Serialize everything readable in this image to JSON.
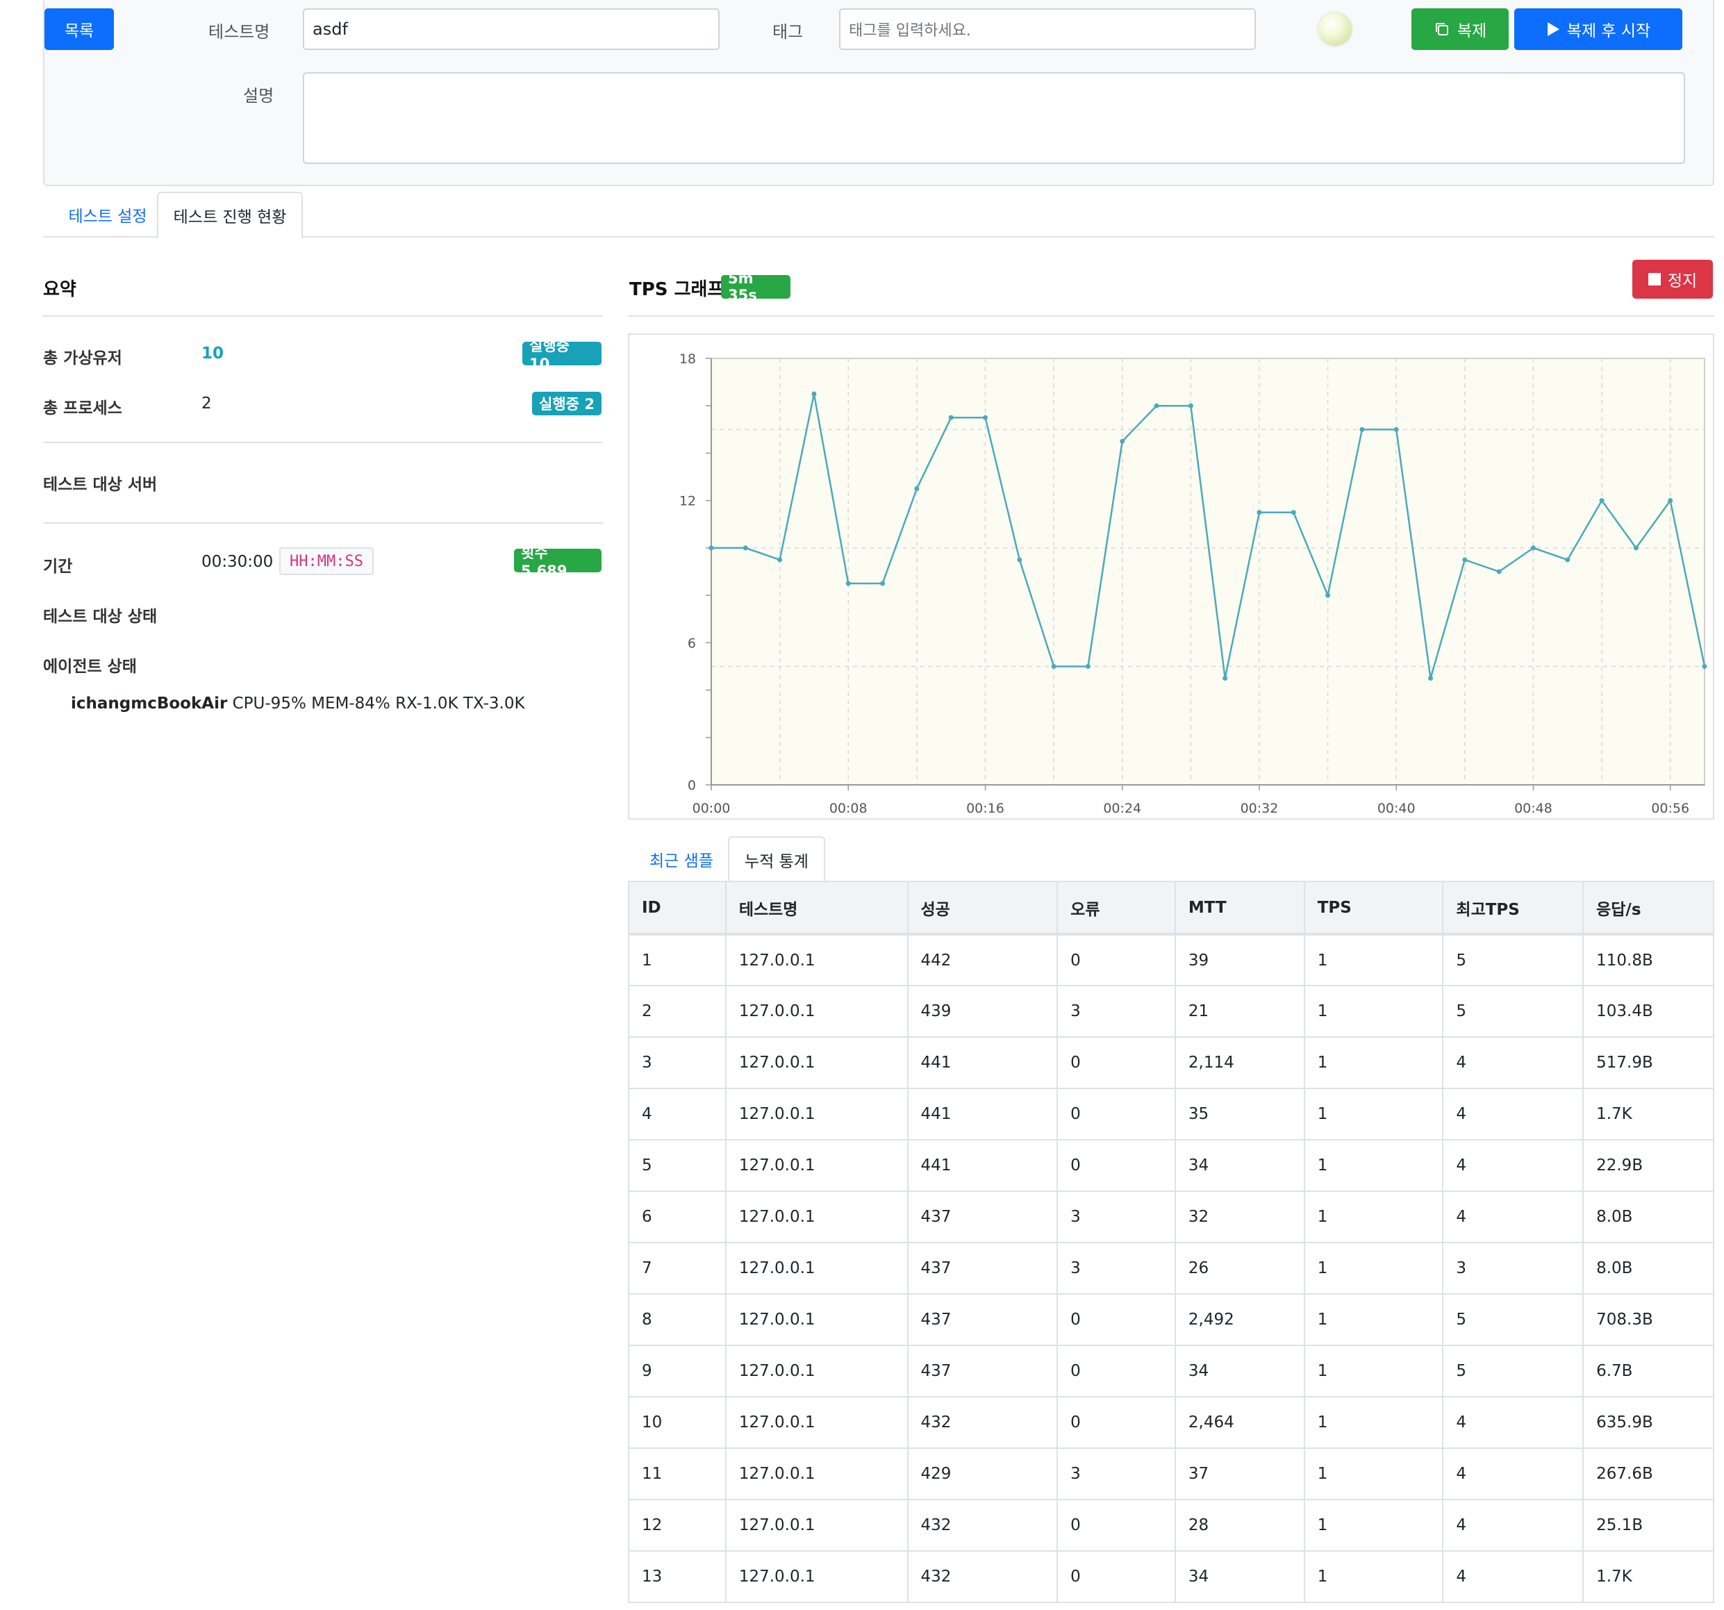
{
  "top": {
    "list_button": "목록",
    "name_label": "테스트명",
    "name_value": "asdf",
    "tag_label": "태그",
    "tag_placeholder": "태그를 입력하세요.",
    "desc_label": "설명",
    "desc_value": "",
    "copy_button": "복제",
    "copy_start_button": "복제 후 시작"
  },
  "tabs": [
    "테스트 설정",
    "테스트 진행 현황"
  ],
  "summary": {
    "title": "요약",
    "total_users_label": "총 가상유저",
    "total_users_value": "10",
    "total_users_badge": "실행중 10",
    "total_procs_label": "총 프로세스",
    "total_procs_value": "2",
    "total_procs_badge": "실행중 2",
    "target_server_label": "테스트 대상 서버",
    "period_label": "기간",
    "period_value": "00:30:00",
    "period_format": "HH:MM:SS",
    "count_badge": "횟수 5,689",
    "target_status_label": "테스트 대상 상태",
    "agent_status_label": "에이전트 상태",
    "agent_name": "ichangmcBookAir",
    "agent_stats": " CPU-95% MEM-84% RX-1.0K TX-3.0K"
  },
  "tps": {
    "title": "TPS 그래프",
    "elapsed_badge": "5m 35s",
    "stop_button": "정지"
  },
  "chart_data": {
    "type": "line",
    "x": [
      "00:00",
      "00:02",
      "00:04",
      "00:06",
      "00:08",
      "00:10",
      "00:12",
      "00:14",
      "00:16",
      "00:18",
      "00:20",
      "00:22",
      "00:24",
      "00:26",
      "00:28",
      "00:30",
      "00:32",
      "00:34",
      "00:36",
      "00:38",
      "00:40",
      "00:42",
      "00:44",
      "00:46",
      "00:48",
      "00:50",
      "00:52",
      "00:54",
      "00:56",
      "00:58"
    ],
    "x_ticks": [
      "00:00",
      "00:08",
      "00:16",
      "00:24",
      "00:32",
      "00:40",
      "00:48",
      "00:56"
    ],
    "values": [
      10,
      10,
      9.5,
      16.5,
      8.5,
      8.5,
      12.5,
      15.5,
      15.5,
      9.5,
      5,
      5,
      14.5,
      16,
      16,
      4.5,
      11.5,
      11.5,
      8,
      15,
      15,
      4.5,
      9.5,
      9,
      10,
      9.5,
      12,
      10,
      12,
      5
    ],
    "ylim": [
      0,
      18
    ],
    "y_ticks": [
      0,
      6,
      12,
      18
    ],
    "grid": true,
    "line_color": "#4aaabb",
    "plot_bg": "#fdfcf2"
  },
  "subtabs": [
    "최근 샘플",
    "누적 통계"
  ],
  "table": {
    "headers": [
      "ID",
      "테스트명",
      "성공",
      "오류",
      "MTT",
      "TPS",
      "최고TPS",
      "응답/s"
    ],
    "rows": [
      [
        "1",
        "127.0.0.1",
        "442",
        "0",
        "39",
        "1",
        "5",
        "110.8B"
      ],
      [
        "2",
        "127.0.0.1",
        "439",
        "3",
        "21",
        "1",
        "5",
        "103.4B"
      ],
      [
        "3",
        "127.0.0.1",
        "441",
        "0",
        "2,114",
        "1",
        "4",
        "517.9B"
      ],
      [
        "4",
        "127.0.0.1",
        "441",
        "0",
        "35",
        "1",
        "4",
        "1.7K"
      ],
      [
        "5",
        "127.0.0.1",
        "441",
        "0",
        "34",
        "1",
        "4",
        "22.9B"
      ],
      [
        "6",
        "127.0.0.1",
        "437",
        "3",
        "32",
        "1",
        "4",
        "8.0B"
      ],
      [
        "7",
        "127.0.0.1",
        "437",
        "3",
        "26",
        "1",
        "3",
        "8.0B"
      ],
      [
        "8",
        "127.0.0.1",
        "437",
        "0",
        "2,492",
        "1",
        "5",
        "708.3B"
      ],
      [
        "9",
        "127.0.0.1",
        "437",
        "0",
        "34",
        "1",
        "5",
        "6.7B"
      ],
      [
        "10",
        "127.0.0.1",
        "432",
        "0",
        "2,464",
        "1",
        "4",
        "635.9B"
      ],
      [
        "11",
        "127.0.0.1",
        "429",
        "3",
        "37",
        "1",
        "4",
        "267.6B"
      ],
      [
        "12",
        "127.0.0.1",
        "432",
        "0",
        "28",
        "1",
        "4",
        "25.1B"
      ],
      [
        "13",
        "127.0.0.1",
        "432",
        "0",
        "34",
        "1",
        "4",
        "1.7K"
      ]
    ]
  }
}
